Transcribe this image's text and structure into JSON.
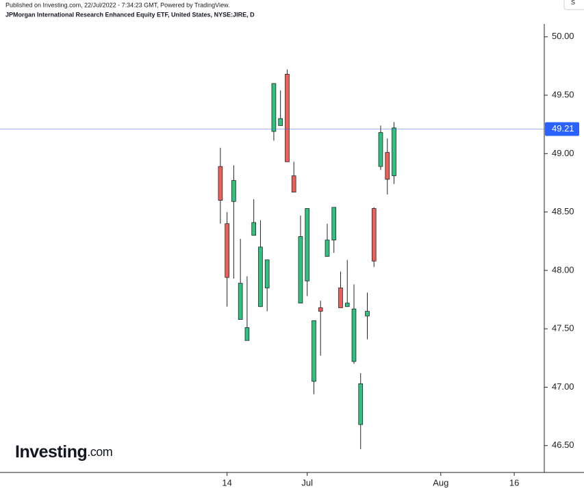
{
  "chart_data": {
    "type": "candlestick",
    "published": "Published on Investing.com, 22/Jul/2022 - 7:34:23 GMT, Powered by TradingView.",
    "title": "JPMorgan International Research Enhanced Equity ETF, United States, NYSE:JIRE, D",
    "toolbar_button": "S",
    "logo": {
      "brand": "Investing",
      "suffix": ".com"
    },
    "x": [
      0,
      1,
      2,
      3,
      4,
      5,
      6,
      7,
      8,
      9,
      10,
      11,
      12,
      13,
      14,
      15,
      16,
      17,
      18,
      19,
      20,
      21,
      22,
      23,
      24,
      25,
      26
    ],
    "open": [
      48.89,
      48.4,
      48.59,
      47.58,
      47.4,
      48.3,
      47.69,
      47.85,
      49.19,
      49.24,
      49.68,
      48.81,
      47.72,
      47.91,
      47.05,
      47.68,
      48.12,
      48.26,
      47.85,
      47.69,
      47.22,
      46.68,
      47.61,
      48.53,
      48.89,
      49.01,
      48.81
    ],
    "high": [
      49.05,
      48.5,
      48.9,
      48.27,
      47.95,
      48.61,
      48.43,
      48.09,
      49.6,
      49.54,
      49.72,
      48.93,
      48.47,
      48.53,
      47.57,
      47.74,
      48.4,
      48.54,
      47.99,
      48.09,
      47.88,
      47.12,
      47.81,
      48.54,
      49.24,
      49.13,
      49.27
    ],
    "low": [
      48.4,
      47.69,
      47.93,
      47.58,
      47.4,
      48.3,
      47.69,
      47.65,
      49.11,
      49.24,
      48.93,
      48.67,
      47.72,
      47.78,
      46.94,
      47.27,
      48.12,
      48.15,
      47.68,
      47.69,
      47.2,
      46.47,
      47.41,
      48.03,
      48.86,
      48.65,
      48.74
    ],
    "close": [
      48.6,
      47.94,
      48.77,
      47.89,
      47.51,
      48.41,
      48.2,
      48.09,
      49.6,
      49.3,
      48.93,
      48.67,
      48.29,
      48.53,
      47.57,
      47.65,
      48.26,
      48.54,
      47.68,
      47.72,
      47.67,
      47.03,
      47.65,
      48.08,
      49.18,
      48.78,
      49.22
    ],
    "up_color": "#2ec27e",
    "down_color": "#ef5f5a",
    "last_price": 49.21,
    "last_price_color": "#2962ff",
    "xlim": [
      -33,
      48.5
    ],
    "xticks": [
      {
        "value": 1,
        "label": "14"
      },
      {
        "value": 13,
        "label": "Jul"
      },
      {
        "value": 33,
        "label": "Aug"
      },
      {
        "value": 44,
        "label": "16"
      }
    ],
    "ylim": [
      46.27,
      50.11
    ],
    "yticks": [
      {
        "value": 46.5,
        "label": "46.50"
      },
      {
        "value": 47,
        "label": "47.00"
      },
      {
        "value": 47.5,
        "label": "47.50"
      },
      {
        "value": 48,
        "label": "48.00"
      },
      {
        "value": 48.5,
        "label": "48.50"
      },
      {
        "value": 49,
        "label": "49.00"
      },
      {
        "value": 49.5,
        "label": "49.50"
      },
      {
        "value": 50,
        "label": "50.00"
      }
    ]
  }
}
